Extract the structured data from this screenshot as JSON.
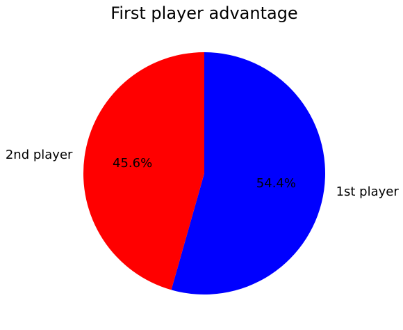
{
  "chart_data": {
    "type": "pie",
    "title": "First player advantage",
    "start_angle_deg": 90,
    "direction": "clockwise",
    "slices": [
      {
        "label": "1st player",
        "value": 54.4,
        "pct_label": "54.4%",
        "color": "#0000ff"
      },
      {
        "label": "2nd player",
        "value": 45.6,
        "pct_label": "45.6%",
        "color": "#ff0000"
      }
    ]
  }
}
